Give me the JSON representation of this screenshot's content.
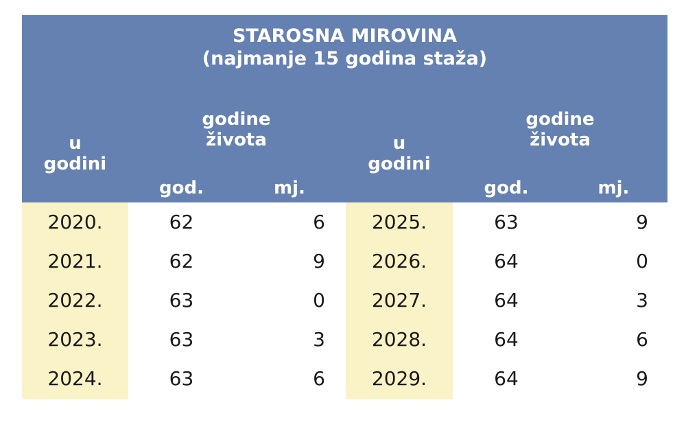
{
  "title": {
    "line1": "STAROSNA MIROVINA",
    "line2": "(najmanje 15 godina staža)"
  },
  "headers": {
    "year_line1": "u",
    "year_line2": "godini",
    "age_line1": "godine",
    "age_line2": "života",
    "years_sub": "god.",
    "months_sub": "mj."
  },
  "rows_left": [
    {
      "year": "2020.",
      "god": "62",
      "mj": "6"
    },
    {
      "year": "2021.",
      "god": "62",
      "mj": "9"
    },
    {
      "year": "2022.",
      "god": "63",
      "mj": "0"
    },
    {
      "year": "2023.",
      "god": "63",
      "mj": "3"
    },
    {
      "year": "2024.",
      "god": "63",
      "mj": "6"
    }
  ],
  "rows_right": [
    {
      "year": "2025.",
      "god": "63",
      "mj": "9"
    },
    {
      "year": "2026.",
      "god": "64",
      "mj": "0"
    },
    {
      "year": "2027.",
      "god": "64",
      "mj": "3"
    },
    {
      "year": "2028.",
      "god": "64",
      "mj": "6"
    },
    {
      "year": "2029.",
      "god": "64",
      "mj": "9"
    }
  ],
  "colors": {
    "header_bg": "#6581b1",
    "year_column_bg": "#faf3c7",
    "header_text": "#ffffff",
    "body_text": "#1a1a1a"
  }
}
